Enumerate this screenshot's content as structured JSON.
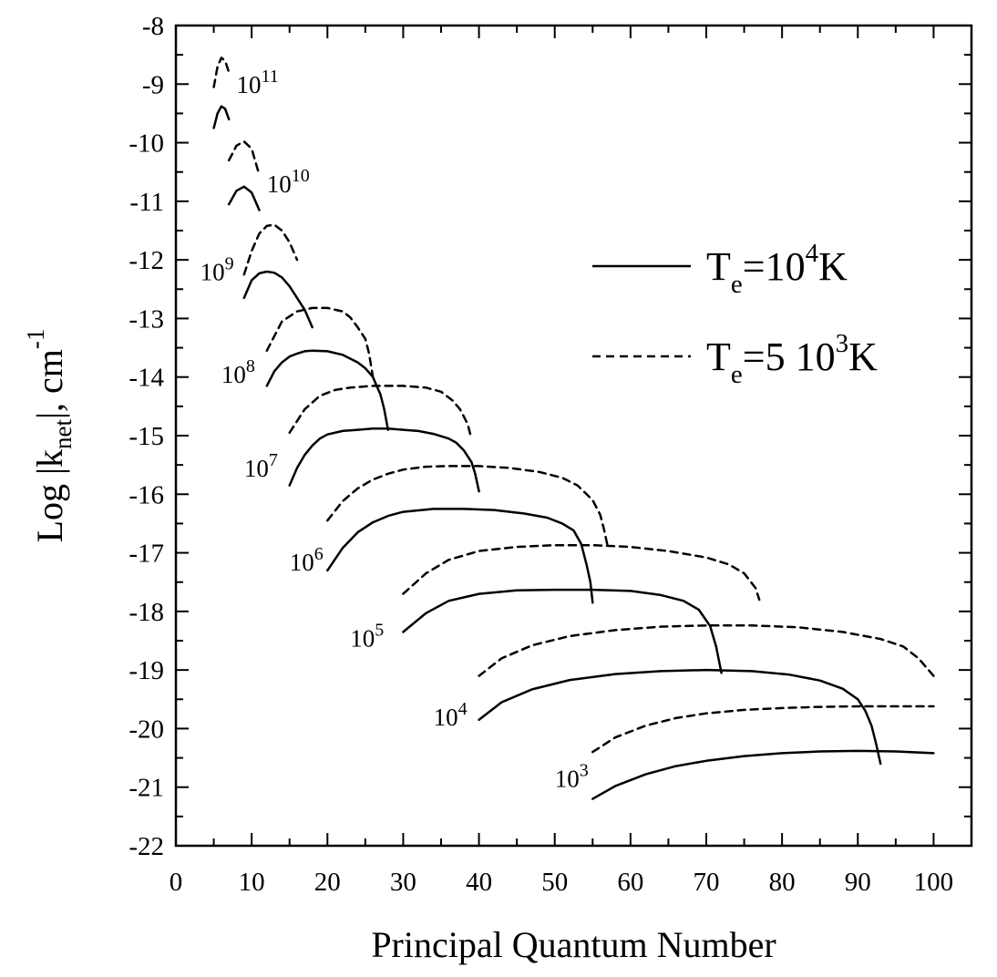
{
  "chart_data": {
    "type": "line",
    "xlabel": "Principal Quantum Number",
    "ylabel": {
      "prefix": "Log |k",
      "subscript": "net",
      "suffix": "|, cm",
      "superscript": "-1"
    },
    "xlim": [
      0,
      105
    ],
    "ylim": [
      -22,
      -8
    ],
    "xticks": [
      0,
      10,
      20,
      30,
      40,
      50,
      60,
      70,
      80,
      90,
      100
    ],
    "yticks": [
      -8,
      -9,
      -10,
      -11,
      -12,
      -13,
      -14,
      -15,
      -16,
      -17,
      -18,
      -19,
      -20,
      -21,
      -22
    ],
    "grid": false,
    "legend_position": "right",
    "legend": [
      {
        "base": "T",
        "sub": "e",
        "mid": "=10",
        "sup": "4",
        "end": "K",
        "style": "solid"
      },
      {
        "base": "T",
        "sub": "e",
        "mid": "=5 10",
        "sup": "3",
        "end": "K",
        "style": "dashed"
      }
    ],
    "curve_labels": [
      {
        "base": "10",
        "exp": "11",
        "x": 8.0,
        "y": -9.15
      },
      {
        "base": "10",
        "exp": "10",
        "x": 12.0,
        "y": -10.85
      },
      {
        "base": "10",
        "exp": "9",
        "x": 3.2,
        "y": -12.35
      },
      {
        "base": "10",
        "exp": "8",
        "x": 6.0,
        "y": -14.1
      },
      {
        "base": "10",
        "exp": "7",
        "x": 9.0,
        "y": -15.7
      },
      {
        "base": "10",
        "exp": "6",
        "x": 15.0,
        "y": -17.3
      },
      {
        "base": "10",
        "exp": "5",
        "x": 23.0,
        "y": -18.6
      },
      {
        "base": "10",
        "exp": "4",
        "x": 34.0,
        "y": -19.95
      },
      {
        "base": "10",
        "exp": "3",
        "x": 50.0,
        "y": -21.0
      }
    ],
    "series": [
      {
        "label": "10^11",
        "style": "dashed",
        "x": [
          5,
          5.5,
          6,
          6.5,
          7
        ],
        "y": [
          -9.05,
          -8.7,
          -8.55,
          -8.6,
          -8.8
        ]
      },
      {
        "label": "10^11",
        "style": "solid",
        "x": [
          5,
          5.5,
          6,
          6.5,
          7
        ],
        "y": [
          -9.75,
          -9.5,
          -9.38,
          -9.42,
          -9.6
        ]
      },
      {
        "label": "10^10",
        "style": "dashed",
        "x": [
          7,
          8,
          9,
          10,
          11
        ],
        "y": [
          -10.3,
          -10.05,
          -9.98,
          -10.1,
          -10.55
        ]
      },
      {
        "label": "10^10",
        "style": "solid",
        "x": [
          7,
          8,
          9,
          10,
          11
        ],
        "y": [
          -11.05,
          -10.82,
          -10.75,
          -10.85,
          -11.15
        ]
      },
      {
        "label": "10^9",
        "style": "dashed",
        "x": [
          9,
          10,
          11,
          12,
          13,
          14,
          15,
          16
        ],
        "y": [
          -12.25,
          -11.85,
          -11.55,
          -11.42,
          -11.4,
          -11.5,
          -11.7,
          -12.0
        ]
      },
      {
        "label": "10^9",
        "style": "solid",
        "x": [
          9,
          10,
          11,
          12,
          13,
          14,
          15,
          16,
          17,
          18
        ],
        "y": [
          -12.65,
          -12.35,
          -12.23,
          -12.2,
          -12.22,
          -12.3,
          -12.45,
          -12.65,
          -12.85,
          -13.15
        ]
      },
      {
        "label": "10^8",
        "style": "dashed",
        "x": [
          12,
          14,
          16,
          18,
          20,
          22,
          23,
          24,
          25,
          25.5,
          26
        ],
        "y": [
          -13.55,
          -13.05,
          -12.88,
          -12.82,
          -12.82,
          -12.88,
          -12.98,
          -13.15,
          -13.35,
          -13.6,
          -14.0
        ]
      },
      {
        "label": "10^8",
        "style": "solid",
        "x": [
          12,
          13,
          14,
          15,
          16,
          17,
          18,
          20,
          22,
          24,
          25,
          26,
          27,
          27.5,
          28
        ],
        "y": [
          -14.15,
          -13.9,
          -13.75,
          -13.65,
          -13.6,
          -13.56,
          -13.55,
          -13.56,
          -13.62,
          -13.75,
          -13.85,
          -14.0,
          -14.3,
          -14.55,
          -14.9
        ]
      },
      {
        "label": "10^7",
        "style": "dashed",
        "x": [
          15,
          17,
          19,
          21,
          23,
          26,
          30,
          33,
          35,
          36.5,
          37.5,
          38.5,
          39
        ],
        "y": [
          -14.95,
          -14.55,
          -14.32,
          -14.22,
          -14.18,
          -14.15,
          -14.15,
          -14.18,
          -14.25,
          -14.4,
          -14.55,
          -14.8,
          -15.05
        ]
      },
      {
        "label": "10^7",
        "style": "solid",
        "x": [
          15,
          16,
          17,
          18,
          19,
          20,
          22,
          24,
          26,
          28,
          30,
          32,
          34,
          36,
          37,
          38,
          39,
          39.5,
          40
        ],
        "y": [
          -15.85,
          -15.55,
          -15.33,
          -15.17,
          -15.05,
          -14.98,
          -14.92,
          -14.9,
          -14.88,
          -14.88,
          -14.9,
          -14.92,
          -14.97,
          -15.05,
          -15.12,
          -15.25,
          -15.45,
          -15.65,
          -15.95
        ]
      },
      {
        "label": "10^6",
        "style": "dashed",
        "x": [
          20,
          22,
          24,
          26,
          28,
          30,
          33,
          36,
          40,
          44,
          48,
          51,
          53,
          55,
          56,
          56.5,
          57
        ],
        "y": [
          -16.45,
          -16.12,
          -15.9,
          -15.75,
          -15.65,
          -15.58,
          -15.53,
          -15.52,
          -15.52,
          -15.55,
          -15.62,
          -15.72,
          -15.85,
          -16.1,
          -16.35,
          -16.6,
          -16.9
        ]
      },
      {
        "label": "10^6",
        "style": "solid",
        "x": [
          20,
          22,
          24,
          26,
          28,
          30,
          34,
          38,
          42,
          46,
          49,
          51,
          52.5,
          53.5,
          54.2,
          54.7,
          55
        ],
        "y": [
          -17.3,
          -16.92,
          -16.65,
          -16.48,
          -16.37,
          -16.3,
          -16.25,
          -16.25,
          -16.27,
          -16.33,
          -16.4,
          -16.5,
          -16.62,
          -16.85,
          -17.2,
          -17.5,
          -17.85
        ]
      },
      {
        "label": "10^5",
        "style": "dashed",
        "x": [
          30,
          33,
          36,
          40,
          45,
          50,
          55,
          60,
          65,
          70,
          73,
          75,
          76.5,
          77
        ],
        "y": [
          -17.7,
          -17.35,
          -17.12,
          -16.97,
          -16.9,
          -16.87,
          -16.87,
          -16.9,
          -16.97,
          -17.08,
          -17.2,
          -17.35,
          -17.6,
          -17.8
        ]
      },
      {
        "label": "10^5",
        "style": "solid",
        "x": [
          30,
          33,
          36,
          40,
          45,
          50,
          55,
          60,
          64,
          67,
          69,
          70.5,
          71.3,
          72
        ],
        "y": [
          -18.35,
          -18.03,
          -17.82,
          -17.7,
          -17.64,
          -17.63,
          -17.63,
          -17.65,
          -17.72,
          -17.82,
          -17.97,
          -18.25,
          -18.6,
          -19.05
        ]
      },
      {
        "label": "10^4",
        "style": "dashed",
        "x": [
          40,
          43,
          47,
          52,
          58,
          64,
          70,
          76,
          82,
          88,
          93,
          96,
          98,
          100
        ],
        "y": [
          -19.1,
          -18.8,
          -18.58,
          -18.42,
          -18.32,
          -18.26,
          -18.24,
          -18.24,
          -18.27,
          -18.35,
          -18.47,
          -18.6,
          -18.8,
          -19.1
        ]
      },
      {
        "label": "10^4",
        "style": "solid",
        "x": [
          40,
          43,
          47,
          52,
          58,
          64,
          70,
          76,
          81,
          85,
          88,
          90,
          91,
          91.8,
          92.4,
          93
        ],
        "y": [
          -19.85,
          -19.55,
          -19.33,
          -19.17,
          -19.07,
          -19.02,
          -19.0,
          -19.02,
          -19.08,
          -19.18,
          -19.32,
          -19.5,
          -19.7,
          -19.95,
          -20.25,
          -20.6
        ]
      },
      {
        "label": "10^3",
        "style": "dashed",
        "x": [
          55,
          58,
          62,
          66,
          70,
          75,
          80,
          85,
          90,
          95,
          100
        ],
        "y": [
          -20.4,
          -20.15,
          -19.95,
          -19.82,
          -19.74,
          -19.68,
          -19.65,
          -19.63,
          -19.62,
          -19.62,
          -19.62
        ]
      },
      {
        "label": "10^3",
        "style": "solid",
        "x": [
          55,
          58,
          62,
          66,
          70,
          75,
          80,
          85,
          90,
          95,
          100
        ],
        "y": [
          -21.2,
          -20.98,
          -20.78,
          -20.64,
          -20.55,
          -20.47,
          -20.42,
          -20.39,
          -20.38,
          -20.39,
          -20.42
        ]
      }
    ]
  }
}
